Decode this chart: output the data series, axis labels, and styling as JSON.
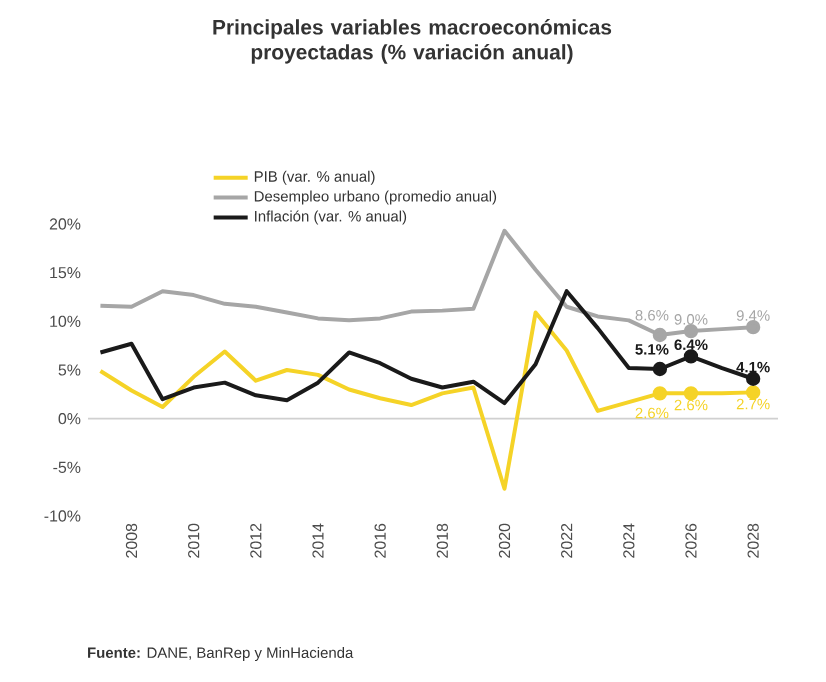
{
  "chart_data": {
    "type": "line",
    "title": "Principales variables macroeconómicas proyectadas (% variación anual)",
    "x": [
      2007,
      2008,
      2009,
      2010,
      2011,
      2012,
      2013,
      2014,
      2015,
      2016,
      2017,
      2018,
      2019,
      2020,
      2021,
      2022,
      2023,
      2024,
      2025,
      2026,
      2027,
      2028
    ],
    "series": [
      {
        "name": "PIB (var. % anual)",
        "color": "#f5d327",
        "values": [
          4.9,
          2.9,
          1.2,
          4.3,
          6.9,
          3.9,
          5.0,
          4.5,
          3.0,
          2.1,
          1.4,
          2.6,
          3.2,
          -7.2,
          10.9,
          7.0,
          0.8,
          1.7,
          2.6,
          2.6,
          2.6,
          2.7
        ],
        "value_labels": [
          null,
          null,
          null,
          null,
          null,
          null,
          null,
          null,
          null,
          null,
          null,
          null,
          null,
          null,
          null,
          null,
          null,
          null,
          "2.6%",
          "2.6%",
          null,
          "2.7%"
        ]
      },
      {
        "name": "Desempleo urbano (promedio anual)",
        "color": "#a6a6a6",
        "values": [
          11.6,
          11.5,
          13.1,
          12.7,
          11.8,
          11.5,
          10.9,
          10.3,
          10.1,
          10.3,
          11.0,
          11.1,
          11.3,
          19.3,
          15.3,
          11.5,
          10.5,
          10.1,
          8.6,
          9.0,
          9.2,
          9.4
        ],
        "value_labels": [
          null,
          null,
          null,
          null,
          null,
          null,
          null,
          null,
          null,
          null,
          null,
          null,
          null,
          null,
          null,
          null,
          null,
          null,
          "8.6%",
          "9.0%",
          null,
          "9.4%"
        ]
      },
      {
        "name": "Inflación (var. % anual)",
        "color": "#1a1a1a",
        "values": [
          6.8,
          7.7,
          2.0,
          3.2,
          3.7,
          2.4,
          1.9,
          3.7,
          6.8,
          5.7,
          4.1,
          3.2,
          3.8,
          1.6,
          5.6,
          13.1,
          9.3,
          5.2,
          5.1,
          6.4,
          5.2,
          4.1
        ],
        "value_labels": [
          null,
          null,
          null,
          null,
          null,
          null,
          null,
          null,
          null,
          null,
          null,
          null,
          null,
          null,
          null,
          null,
          null,
          null,
          "5.1%",
          "6.4%",
          null,
          "4.1%"
        ]
      }
    ],
    "xlim": [
      2006.6,
      2028.8
    ],
    "xticks": [
      2008,
      2010,
      2012,
      2014,
      2016,
      2018,
      2020,
      2022,
      2024,
      2026,
      2028
    ],
    "ylim": [
      -10,
      20
    ],
    "yticks": [
      {
        "value": -10,
        "label": "-10%"
      },
      {
        "value": -5,
        "label": "-5%"
      },
      {
        "value": 0,
        "label": "0%"
      },
      {
        "value": 5,
        "label": "5%"
      },
      {
        "value": 10,
        "label": "10%"
      },
      {
        "value": 15,
        "label": "15%"
      },
      {
        "value": 20,
        "label": "20%"
      }
    ],
    "ref_lines": [
      {
        "axis": "y",
        "value": 0,
        "color": "#d0d0d0"
      }
    ],
    "grid": false,
    "legend": "top",
    "line_style": "solid",
    "annotations": [
      "**Fuente:** DANE, BanRep y MinHacienda"
    ]
  }
}
